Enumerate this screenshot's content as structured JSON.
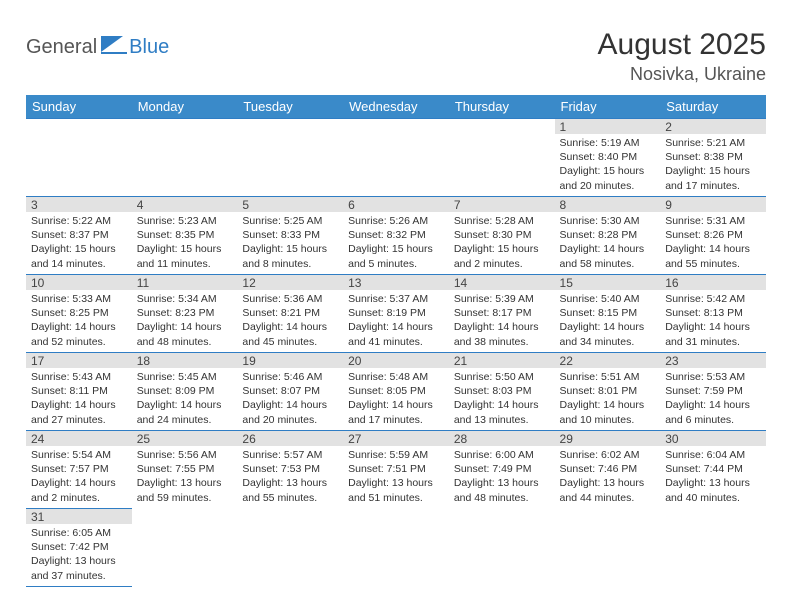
{
  "logo": {
    "part1": "General",
    "part2": "Blue"
  },
  "title": "August 2025",
  "location": "Nosivka, Ukraine",
  "colors": {
    "header_bg": "#3a8ac9",
    "border": "#2f7dc4",
    "daynum_bg": "#e2e2e2"
  },
  "weekdays": [
    "Sunday",
    "Monday",
    "Tuesday",
    "Wednesday",
    "Thursday",
    "Friday",
    "Saturday"
  ],
  "weeks": [
    [
      null,
      null,
      null,
      null,
      null,
      {
        "d": "1",
        "sr": "5:19 AM",
        "ss": "8:40 PM",
        "dl": "15 hours and 20 minutes."
      },
      {
        "d": "2",
        "sr": "5:21 AM",
        "ss": "8:38 PM",
        "dl": "15 hours and 17 minutes."
      }
    ],
    [
      {
        "d": "3",
        "sr": "5:22 AM",
        "ss": "8:37 PM",
        "dl": "15 hours and 14 minutes."
      },
      {
        "d": "4",
        "sr": "5:23 AM",
        "ss": "8:35 PM",
        "dl": "15 hours and 11 minutes."
      },
      {
        "d": "5",
        "sr": "5:25 AM",
        "ss": "8:33 PM",
        "dl": "15 hours and 8 minutes."
      },
      {
        "d": "6",
        "sr": "5:26 AM",
        "ss": "8:32 PM",
        "dl": "15 hours and 5 minutes."
      },
      {
        "d": "7",
        "sr": "5:28 AM",
        "ss": "8:30 PM",
        "dl": "15 hours and 2 minutes."
      },
      {
        "d": "8",
        "sr": "5:30 AM",
        "ss": "8:28 PM",
        "dl": "14 hours and 58 minutes."
      },
      {
        "d": "9",
        "sr": "5:31 AM",
        "ss": "8:26 PM",
        "dl": "14 hours and 55 minutes."
      }
    ],
    [
      {
        "d": "10",
        "sr": "5:33 AM",
        "ss": "8:25 PM",
        "dl": "14 hours and 52 minutes."
      },
      {
        "d": "11",
        "sr": "5:34 AM",
        "ss": "8:23 PM",
        "dl": "14 hours and 48 minutes."
      },
      {
        "d": "12",
        "sr": "5:36 AM",
        "ss": "8:21 PM",
        "dl": "14 hours and 45 minutes."
      },
      {
        "d": "13",
        "sr": "5:37 AM",
        "ss": "8:19 PM",
        "dl": "14 hours and 41 minutes."
      },
      {
        "d": "14",
        "sr": "5:39 AM",
        "ss": "8:17 PM",
        "dl": "14 hours and 38 minutes."
      },
      {
        "d": "15",
        "sr": "5:40 AM",
        "ss": "8:15 PM",
        "dl": "14 hours and 34 minutes."
      },
      {
        "d": "16",
        "sr": "5:42 AM",
        "ss": "8:13 PM",
        "dl": "14 hours and 31 minutes."
      }
    ],
    [
      {
        "d": "17",
        "sr": "5:43 AM",
        "ss": "8:11 PM",
        "dl": "14 hours and 27 minutes."
      },
      {
        "d": "18",
        "sr": "5:45 AM",
        "ss": "8:09 PM",
        "dl": "14 hours and 24 minutes."
      },
      {
        "d": "19",
        "sr": "5:46 AM",
        "ss": "8:07 PM",
        "dl": "14 hours and 20 minutes."
      },
      {
        "d": "20",
        "sr": "5:48 AM",
        "ss": "8:05 PM",
        "dl": "14 hours and 17 minutes."
      },
      {
        "d": "21",
        "sr": "5:50 AM",
        "ss": "8:03 PM",
        "dl": "14 hours and 13 minutes."
      },
      {
        "d": "22",
        "sr": "5:51 AM",
        "ss": "8:01 PM",
        "dl": "14 hours and 10 minutes."
      },
      {
        "d": "23",
        "sr": "5:53 AM",
        "ss": "7:59 PM",
        "dl": "14 hours and 6 minutes."
      }
    ],
    [
      {
        "d": "24",
        "sr": "5:54 AM",
        "ss": "7:57 PM",
        "dl": "14 hours and 2 minutes."
      },
      {
        "d": "25",
        "sr": "5:56 AM",
        "ss": "7:55 PM",
        "dl": "13 hours and 59 minutes."
      },
      {
        "d": "26",
        "sr": "5:57 AM",
        "ss": "7:53 PM",
        "dl": "13 hours and 55 minutes."
      },
      {
        "d": "27",
        "sr": "5:59 AM",
        "ss": "7:51 PM",
        "dl": "13 hours and 51 minutes."
      },
      {
        "d": "28",
        "sr": "6:00 AM",
        "ss": "7:49 PM",
        "dl": "13 hours and 48 minutes."
      },
      {
        "d": "29",
        "sr": "6:02 AM",
        "ss": "7:46 PM",
        "dl": "13 hours and 44 minutes."
      },
      {
        "d": "30",
        "sr": "6:04 AM",
        "ss": "7:44 PM",
        "dl": "13 hours and 40 minutes."
      }
    ],
    [
      {
        "d": "31",
        "sr": "6:05 AM",
        "ss": "7:42 PM",
        "dl": "13 hours and 37 minutes."
      },
      null,
      null,
      null,
      null,
      null,
      null
    ]
  ]
}
